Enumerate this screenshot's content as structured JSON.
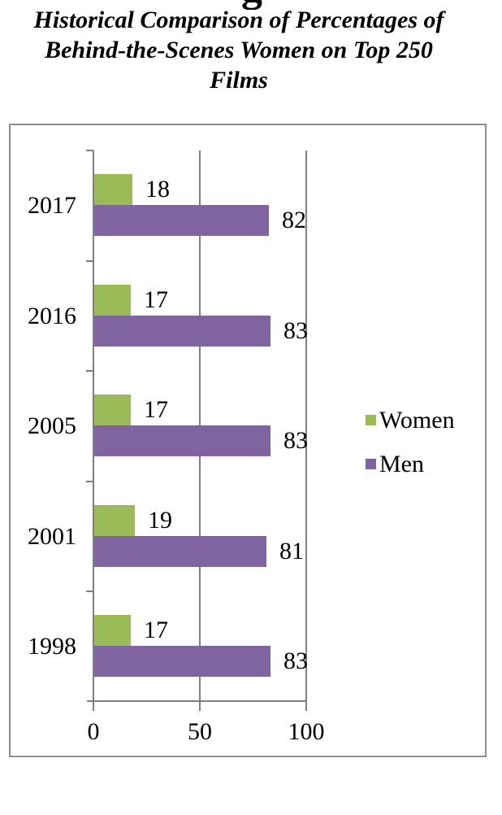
{
  "page": {
    "cropped_text_fragment": "g"
  },
  "title": {
    "lines": [
      "Historical Comparison of Percentages of",
      "Behind-the-Scenes Women on Top 250",
      "Films"
    ]
  },
  "chart_data": {
    "type": "bar",
    "orientation": "horizontal",
    "title": "Historical Comparison of Percentages of Behind-the-Scenes Women on Top 250 Films",
    "categories": [
      "2017",
      "2016",
      "2005",
      "2001",
      "1998"
    ],
    "series": [
      {
        "name": "Women",
        "color": "#9bbb59",
        "values": [
          18,
          17,
          17,
          19,
          17
        ]
      },
      {
        "name": "Men",
        "color": "#8064a2",
        "values": [
          82,
          83,
          83,
          81,
          83
        ]
      }
    ],
    "xlim": [
      0,
      100
    ],
    "xticks": [
      0,
      50,
      100
    ],
    "data_labels": true,
    "legend_position": "right",
    "gridlines": "vertical",
    "gridline_color": "#7f7f7f",
    "text_color": "#000000"
  }
}
